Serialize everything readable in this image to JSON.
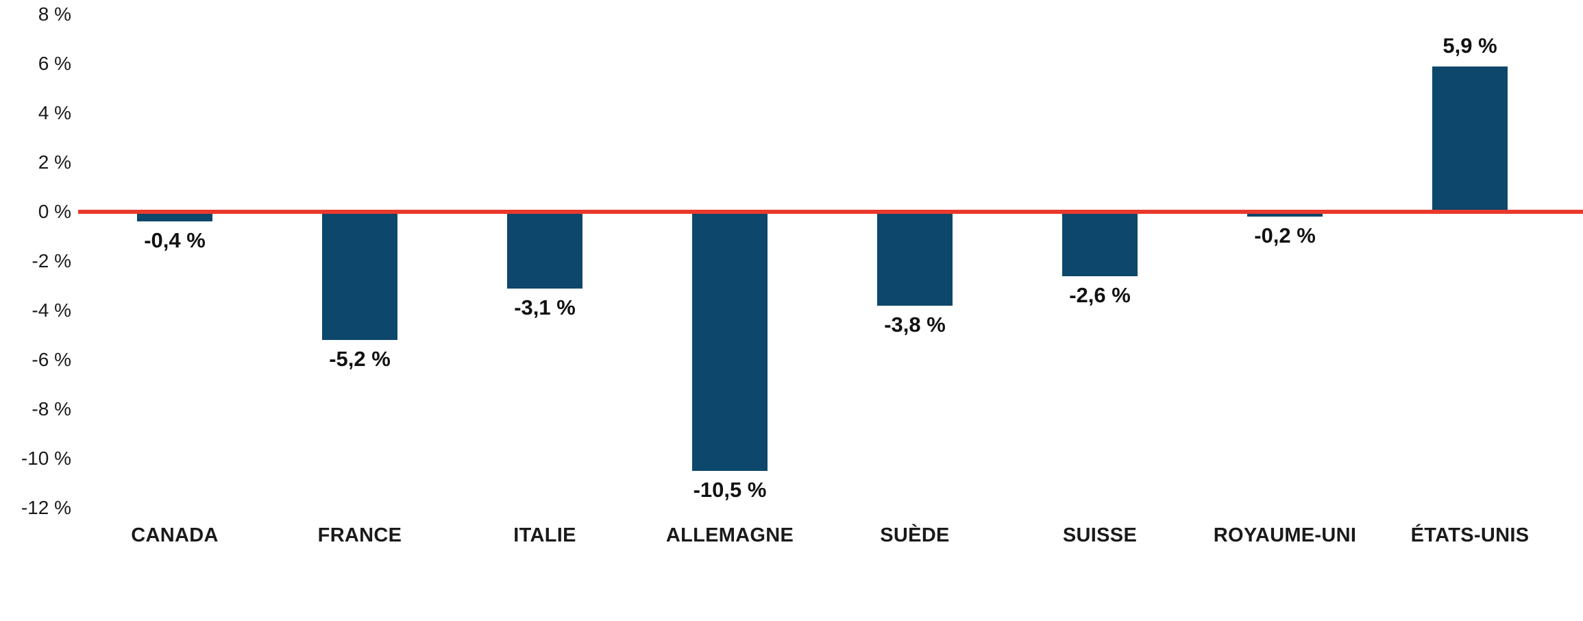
{
  "chart_data": {
    "type": "bar",
    "title": "",
    "xlabel": "",
    "ylabel": "",
    "categories": [
      "CANADA",
      "FRANCE",
      "ITALIE",
      "ALLEMAGNE",
      "SUÈDE",
      "SUISSE",
      "ROYAUME-UNI",
      "ÉTATS-UNIS"
    ],
    "values": [
      -0.4,
      -5.2,
      -3.1,
      -10.5,
      -3.8,
      -2.6,
      -0.2,
      5.9
    ],
    "value_labels": [
      "-0,4 %",
      "-5,2 %",
      "-3,1 %",
      "-10,5 %",
      "-3,8 %",
      "-2,6 %",
      "-0,2 %",
      "5,9 %"
    ],
    "ylim": [
      -12,
      8
    ],
    "ytick_values": [
      8,
      6,
      4,
      2,
      0,
      -2,
      -4,
      -6,
      -8,
      -10,
      -12
    ],
    "ytick_labels": [
      "8 %",
      "6 %",
      "4 %",
      "2 %",
      "0 %",
      "-2 %",
      "-4 %",
      "-6 %",
      "-8 %",
      "-10 %",
      "-12 %"
    ],
    "grid": false,
    "legend": "none",
    "zero_line": true,
    "colors": {
      "bar": "#0d476b",
      "zero_line": "#e9392c",
      "text": "#1a1a1a"
    }
  }
}
